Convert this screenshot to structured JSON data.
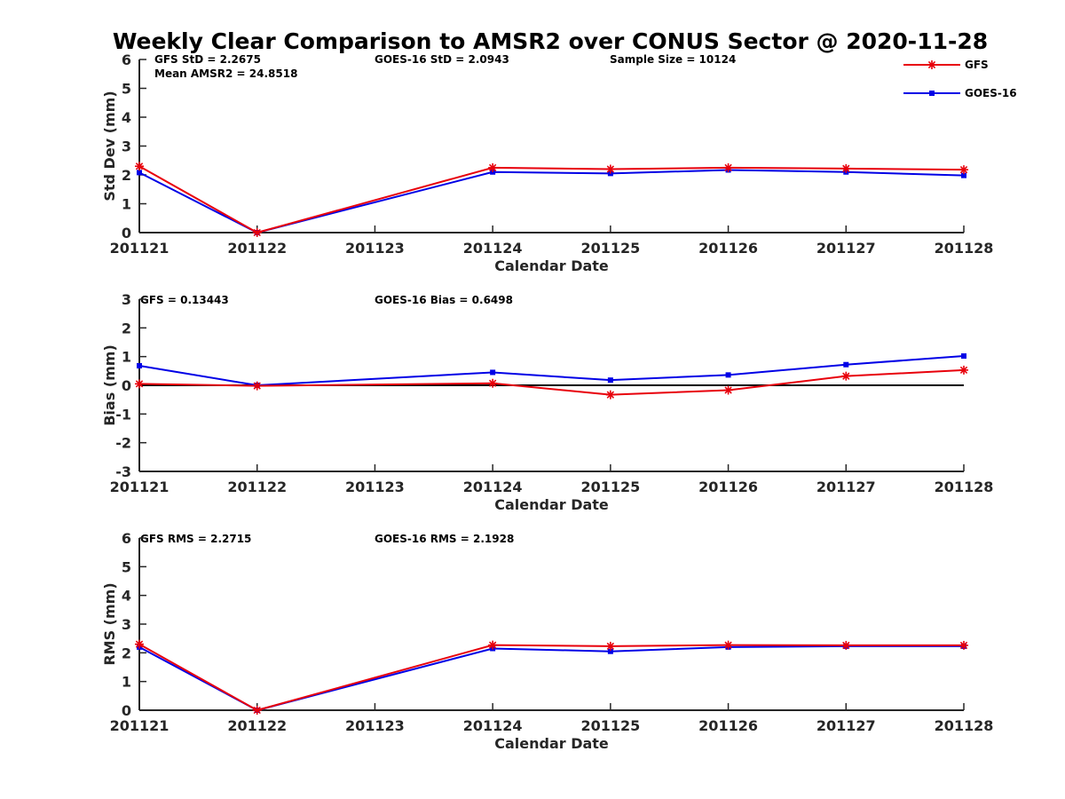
{
  "figure": {
    "title": "Weekly Clear Comparison to AMSR2 over CONUS Sector @ 2020-11-28"
  },
  "legend": {
    "placement": "top-right",
    "items": [
      {
        "label": "GFS",
        "color": "#e8000b",
        "marker": "asterisk"
      },
      {
        "label": "GOES-16",
        "color": "#0000e6",
        "marker": "square"
      }
    ]
  },
  "colors": {
    "gfs": "#e8000b",
    "goes": "#0000e6",
    "zero_line": "#000000",
    "axis": "#262626"
  },
  "panels": [
    {
      "annotations": {
        "a1": "GFS StD = 2.2675",
        "a2": "Mean AMSR2 = 24.8518",
        "a3": "GOES-16 StD = 2.0943",
        "a4": "Sample Size = 10124"
      }
    },
    {
      "annotations": {
        "a1": "GFS = 0.13443",
        "a2": "GOES-16 Bias  = 0.6498"
      }
    },
    {
      "annotations": {
        "a1": "GFS RMS = 2.2715",
        "a2": "GOES-16 RMS = 2.1928"
      }
    }
  ],
  "chart_data": [
    {
      "type": "line",
      "title": "Weekly Clear Comparison to AMSR2 over CONUS Sector @ 2020-11-28",
      "xlabel": "Calendar Date",
      "ylabel": "Std Dev (mm)",
      "categories": [
        "201121",
        "201122",
        "201123",
        "201124",
        "201125",
        "201126",
        "201127",
        "201128"
      ],
      "ylim": [
        0,
        6
      ],
      "yticks": [
        0,
        1,
        2,
        3,
        4,
        5,
        6
      ],
      "zero_line": false,
      "series": [
        {
          "name": "GFS",
          "x": [
            0,
            1,
            3,
            4,
            5,
            6,
            7
          ],
          "values": [
            2.3,
            0.0,
            2.25,
            2.2,
            2.25,
            2.22,
            2.18
          ]
        },
        {
          "name": "GOES-16",
          "x": [
            0,
            1,
            3,
            4,
            5,
            6,
            7
          ],
          "values": [
            2.08,
            0.0,
            2.1,
            2.05,
            2.17,
            2.1,
            1.98
          ]
        }
      ]
    },
    {
      "type": "line",
      "xlabel": "Calendar Date",
      "ylabel": "Bias (mm)",
      "categories": [
        "201121",
        "201122",
        "201123",
        "201124",
        "201125",
        "201126",
        "201127",
        "201128"
      ],
      "ylim": [
        -3,
        3
      ],
      "yticks": [
        -3,
        -2,
        -1,
        0,
        1,
        2,
        3
      ],
      "zero_line": true,
      "series": [
        {
          "name": "GFS",
          "x": [
            0,
            1,
            3,
            4,
            5,
            6,
            7
          ],
          "values": [
            0.05,
            -0.02,
            0.07,
            -0.33,
            -0.17,
            0.32,
            0.53
          ]
        },
        {
          "name": "GOES-16",
          "x": [
            0,
            1,
            3,
            4,
            5,
            6,
            7
          ],
          "values": [
            0.68,
            0.0,
            0.45,
            0.18,
            0.36,
            0.72,
            1.02
          ]
        }
      ]
    },
    {
      "type": "line",
      "xlabel": "Calendar Date",
      "ylabel": "RMS (mm)",
      "categories": [
        "201121",
        "201122",
        "201123",
        "201124",
        "201125",
        "201126",
        "201127",
        "201128"
      ],
      "ylim": [
        0,
        6
      ],
      "yticks": [
        0,
        1,
        2,
        3,
        4,
        5,
        6
      ],
      "zero_line": false,
      "series": [
        {
          "name": "GFS",
          "x": [
            0,
            1,
            3,
            4,
            5,
            6,
            7
          ],
          "values": [
            2.3,
            0.0,
            2.27,
            2.23,
            2.27,
            2.26,
            2.26
          ]
        },
        {
          "name": "GOES-16",
          "x": [
            0,
            1,
            3,
            4,
            5,
            6,
            7
          ],
          "values": [
            2.2,
            0.0,
            2.15,
            2.05,
            2.2,
            2.23,
            2.23
          ]
        }
      ]
    }
  ]
}
